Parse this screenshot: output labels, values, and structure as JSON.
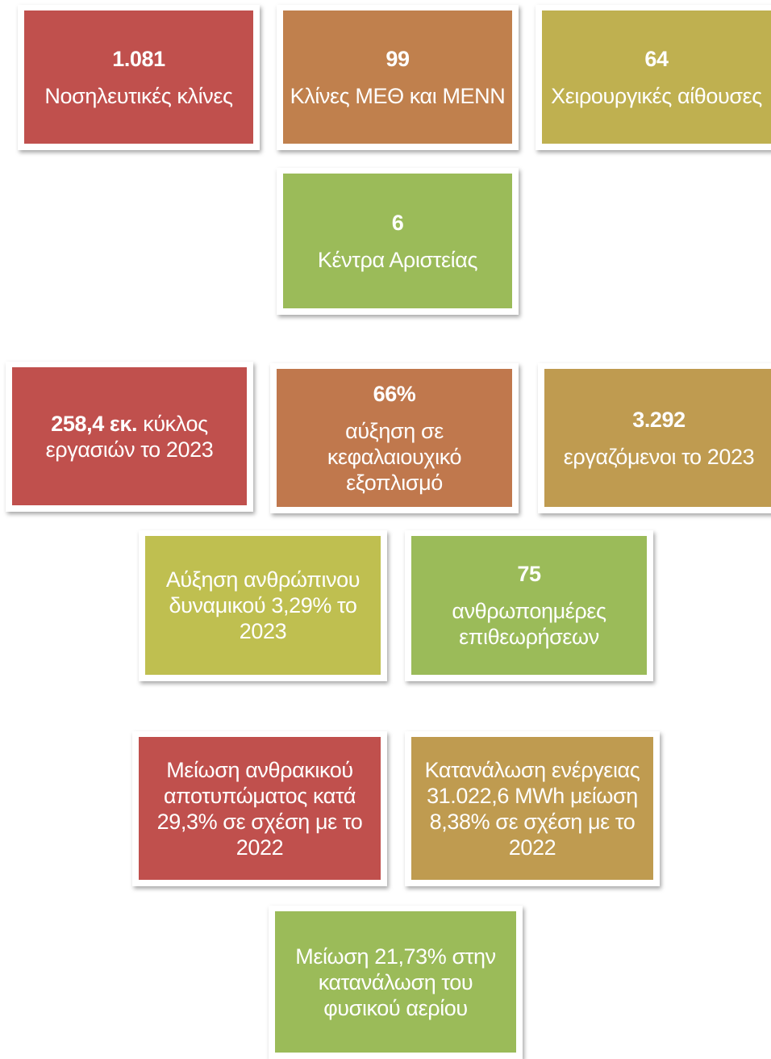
{
  "tiles": [
    {
      "value": "1.081",
      "lines": [
        "Νοσηλευτικές κλίνες"
      ]
    },
    {
      "value": "99",
      "lines": [
        "Κλίνες ΜΕΘ και ΜΕΝΝ"
      ]
    },
    {
      "value": "64",
      "lines": [
        "Χειρουργικές αίθουσες"
      ]
    },
    {
      "value": "6",
      "lines": [
        "Κέντρα Αριστείας"
      ]
    },
    {
      "bold": "258,4 εκ.",
      "lines": [
        "κύκλος",
        "εργασιών το 2023"
      ]
    },
    {
      "value": "66%",
      "lines": [
        "αύξηση σε",
        "κεφαλαιουχικό",
        "εξοπλισμό"
      ]
    },
    {
      "value": "3.292",
      "lines": [
        "εργαζόμενοι το 2023"
      ]
    },
    {
      "lines": [
        "Αύξηση ανθρώπινου",
        "δυναμικού 3,29% το",
        "2023"
      ]
    },
    {
      "value": "75",
      "lines": [
        "ανθρωποημέρες",
        "επιθεωρήσεων"
      ]
    },
    {
      "lines": [
        "Μείωση ανθρακικού",
        "αποτυπώματος κατά",
        "29,3% σε σχέση με το",
        "2022"
      ]
    },
    {
      "lines": [
        "Κατανάλωση ενέργειας",
        "31.022,6 MWh μείωση",
        "8,38% σε σχέση με το",
        "2022"
      ]
    },
    {
      "lines": [
        "Μείωση 21,73% στην",
        "κατανάλωση του",
        "φυσικού αερίου"
      ]
    }
  ]
}
